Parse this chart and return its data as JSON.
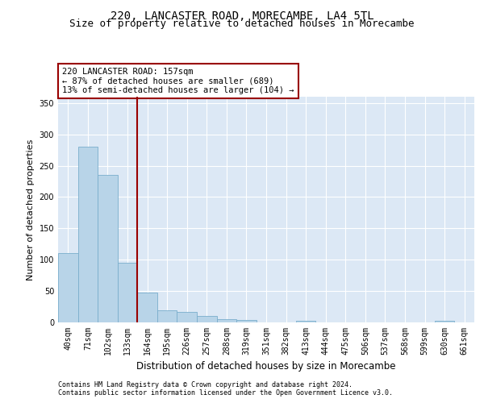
{
  "title1": "220, LANCASTER ROAD, MORECAMBE, LA4 5TL",
  "title2": "Size of property relative to detached houses in Morecambe",
  "xlabel": "Distribution of detached houses by size in Morecambe",
  "ylabel": "Number of detached properties",
  "categories": [
    "40sqm",
    "71sqm",
    "102sqm",
    "133sqm",
    "164sqm",
    "195sqm",
    "226sqm",
    "257sqm",
    "288sqm",
    "319sqm",
    "351sqm",
    "382sqm",
    "413sqm",
    "444sqm",
    "475sqm",
    "506sqm",
    "537sqm",
    "568sqm",
    "599sqm",
    "630sqm",
    "661sqm"
  ],
  "values": [
    110,
    280,
    235,
    95,
    48,
    19,
    17,
    10,
    5,
    4,
    0,
    0,
    3,
    0,
    0,
    0,
    0,
    0,
    0,
    3,
    0
  ],
  "bar_color": "#b8d4e8",
  "bar_edge_color": "#7aaecc",
  "vline_x_index": 3,
  "vline_color": "#990000",
  "annotation_text": "220 LANCASTER ROAD: 157sqm\n← 87% of detached houses are smaller (689)\n13% of semi-detached houses are larger (104) →",
  "annotation_box_color": "white",
  "annotation_box_edge_color": "#990000",
  "ylim": [
    0,
    360
  ],
  "yticks": [
    0,
    50,
    100,
    150,
    200,
    250,
    300,
    350
  ],
  "plot_bg_color": "#dce8f5",
  "grid_color": "#ffffff",
  "footer1": "Contains HM Land Registry data © Crown copyright and database right 2024.",
  "footer2": "Contains public sector information licensed under the Open Government Licence v3.0.",
  "title_fontsize": 10,
  "subtitle_fontsize": 9,
  "tick_fontsize": 7,
  "xlabel_fontsize": 8.5,
  "ylabel_fontsize": 8,
  "annotation_fontsize": 7.5,
  "footer_fontsize": 6
}
